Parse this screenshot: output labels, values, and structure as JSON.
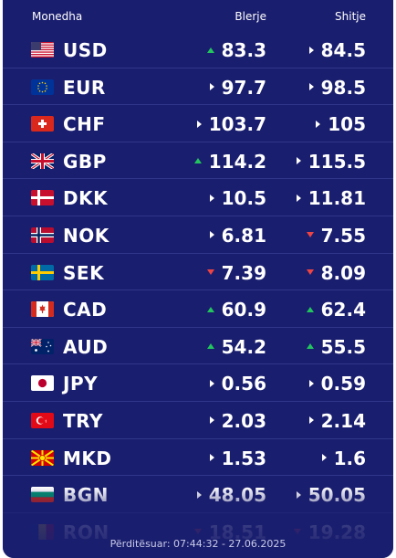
{
  "header": {
    "currency_label": "Monedha",
    "buy_label": "Blerje",
    "sell_label": "Shitje"
  },
  "colors": {
    "panel": "#1a1e6e",
    "up": "#22c55e",
    "down": "#ef4444",
    "same": "#ffffff"
  },
  "rates": [
    {
      "code": "USD",
      "flag": "us-flag",
      "buy": "83.3",
      "buy_trend": "up",
      "sell": "84.5",
      "sell_trend": "same"
    },
    {
      "code": "EUR",
      "flag": "eu-flag",
      "buy": "97.7",
      "buy_trend": "same",
      "sell": "98.5",
      "sell_trend": "same"
    },
    {
      "code": "CHF",
      "flag": "ch-flag",
      "buy": "103.7",
      "buy_trend": "same",
      "sell": "105",
      "sell_trend": "same"
    },
    {
      "code": "GBP",
      "flag": "gb-flag",
      "buy": "114.2",
      "buy_trend": "up",
      "sell": "115.5",
      "sell_trend": "same"
    },
    {
      "code": "DKK",
      "flag": "dk-flag",
      "buy": "10.5",
      "buy_trend": "same",
      "sell": "11.81",
      "sell_trend": "same"
    },
    {
      "code": "NOK",
      "flag": "no-flag",
      "buy": "6.81",
      "buy_trend": "same",
      "sell": "7.55",
      "sell_trend": "down"
    },
    {
      "code": "SEK",
      "flag": "se-flag",
      "buy": "7.39",
      "buy_trend": "down",
      "sell": "8.09",
      "sell_trend": "down"
    },
    {
      "code": "CAD",
      "flag": "ca-flag",
      "buy": "60.9",
      "buy_trend": "up",
      "sell": "62.4",
      "sell_trend": "up"
    },
    {
      "code": "AUD",
      "flag": "au-flag",
      "buy": "54.2",
      "buy_trend": "up",
      "sell": "55.5",
      "sell_trend": "up"
    },
    {
      "code": "JPY",
      "flag": "jp-flag",
      "buy": "0.56",
      "buy_trend": "same",
      "sell": "0.59",
      "sell_trend": "same"
    },
    {
      "code": "TRY",
      "flag": "tr-flag",
      "buy": "2.03",
      "buy_trend": "same",
      "sell": "2.14",
      "sell_trend": "same"
    },
    {
      "code": "MKD",
      "flag": "mk-flag",
      "buy": "1.53",
      "buy_trend": "same",
      "sell": "1.6",
      "sell_trend": "same"
    },
    {
      "code": "BGN",
      "flag": "bg-flag",
      "buy": "48.05",
      "buy_trend": "same",
      "sell": "50.05",
      "sell_trend": "same"
    },
    {
      "code": "RON",
      "flag": "ro-flag",
      "buy": "18.51",
      "buy_trend": "down",
      "sell": "19.28",
      "sell_trend": "down"
    }
  ],
  "footer": {
    "updated": "Përditësuar: 07:44:32 - 27.06.2025"
  }
}
